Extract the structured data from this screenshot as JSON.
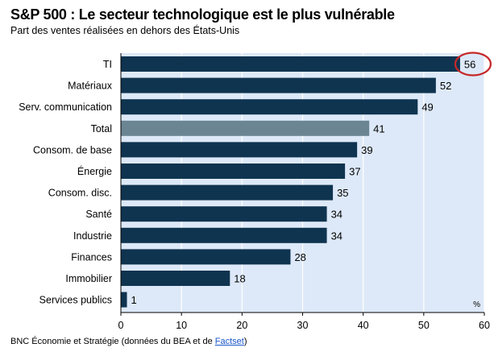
{
  "header": {
    "title": "S&P 500 : Le secteur technologique est le plus vulnérable",
    "subtitle": "Part des ventes réalisées en dehors des États-Unis"
  },
  "source": {
    "text": "BNC Économie et Stratégie (données du BEA et de ",
    "link_label": "Factset",
    "close": ")"
  },
  "chart_data": {
    "type": "bar",
    "orientation": "horizontal",
    "title": "S&P 500 : Le secteur technologique est le plus vulnérable",
    "subtitle": "Part des ventes réalisées en dehors des États-Unis",
    "categories": [
      "TI",
      "Matériaux",
      "Serv. communication",
      "Total",
      "Consom. de base",
      "Énergie",
      "Consom. disc.",
      "Santé",
      "Industrie",
      "Finances",
      "Immobilier",
      "Services publics"
    ],
    "values": [
      56,
      52,
      49,
      41,
      39,
      37,
      35,
      34,
      34,
      28,
      18,
      1
    ],
    "highlight_category": "Total",
    "circled_category": "TI",
    "unit_label": "%",
    "xlim": [
      0,
      60
    ],
    "xticks": [
      0,
      10,
      20,
      30,
      40,
      50,
      60
    ],
    "grid": true,
    "colors": {
      "bar": "#0f3450",
      "highlight": "#6b8593",
      "plot_bg": "#dde9f8",
      "grid": "#ffffff",
      "circle": "#c62828"
    }
  }
}
